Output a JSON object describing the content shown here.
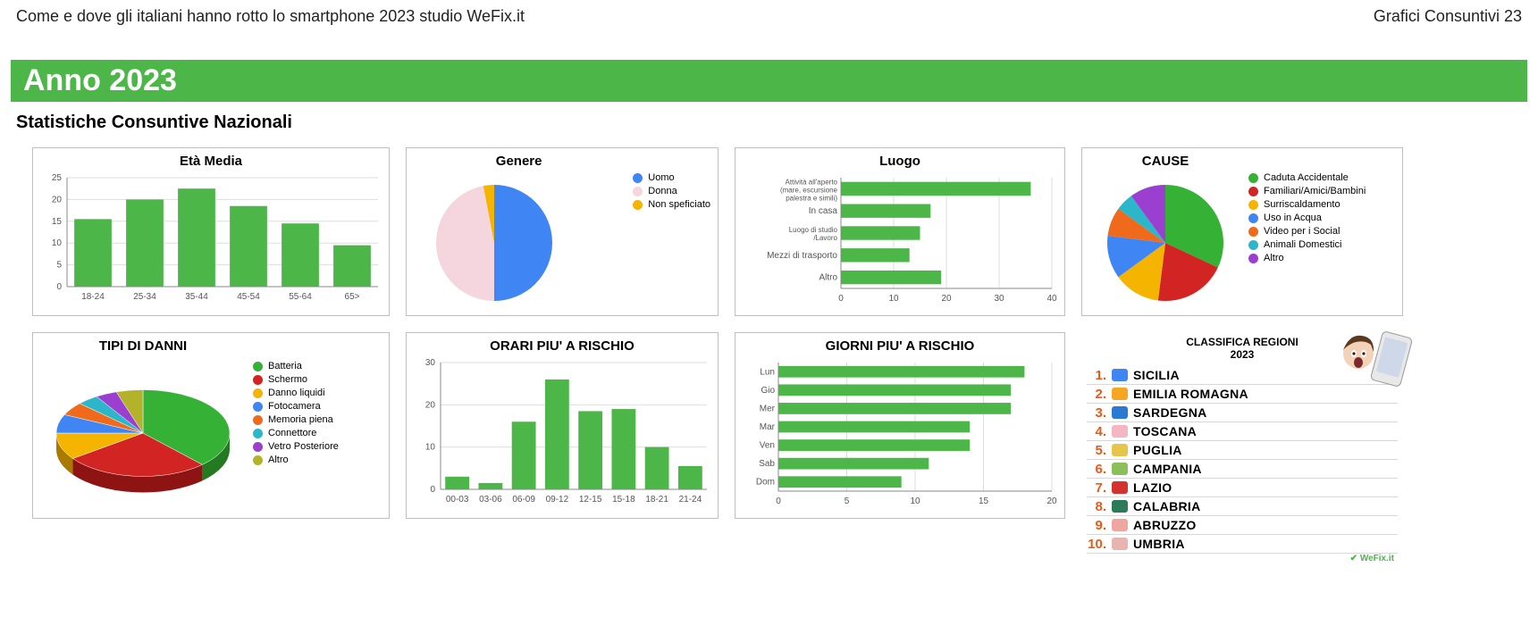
{
  "header": {
    "title_left": "Come e dove gli italiani hanno rotto lo smartphone 2023 studio WeFix.it",
    "title_right": "Grafici Consuntivi 23"
  },
  "banner": "Anno 2023",
  "subtitle": "Statistiche Consuntive Nazionali",
  "colors": {
    "brand_green": "#4cb648",
    "card_border": "#bfbfbf",
    "grid_line": "#dddddd",
    "axis": "#888888",
    "text": "#222222"
  },
  "eta": {
    "type": "bar",
    "title": "Età Media",
    "categories": [
      "18-24",
      "25-34",
      "35-44",
      "45-54",
      "55-64",
      "65>"
    ],
    "values": [
      15.5,
      20,
      22.5,
      18.5,
      14.5,
      9.5
    ],
    "bar_color": "#4cb648",
    "y_ticks": [
      0,
      5,
      10,
      15,
      20,
      25
    ],
    "ylim": [
      0,
      25
    ]
  },
  "genere": {
    "type": "pie",
    "title": "Genere",
    "slices": [
      {
        "label": "Uomo",
        "value": 50,
        "color": "#3f85f3"
      },
      {
        "label": "Donna",
        "value": 47,
        "color": "#f5d6df"
      },
      {
        "label": "Non speficiato",
        "value": 3,
        "color": "#f5b400"
      }
    ]
  },
  "luogo": {
    "type": "hbar",
    "title": "Luogo",
    "categories": [
      "Attività all'aperto (mare, escursione palestra e simili)",
      "In casa",
      "Luogo di studio /Lavoro",
      "Mezzi di trasporto",
      "Altro"
    ],
    "values": [
      36,
      17,
      15,
      13,
      19
    ],
    "bar_color": "#4cb648",
    "x_ticks": [
      0,
      10,
      20,
      30,
      40
    ],
    "xlim": [
      0,
      40
    ]
  },
  "cause": {
    "type": "pie",
    "title": "CAUSE",
    "slices": [
      {
        "label": "Caduta Accidentale",
        "value": 32,
        "color": "#35b236"
      },
      {
        "label": "Familiari/Amici/Bambini",
        "value": 20,
        "color": "#d32424"
      },
      {
        "label": "Surriscaldamento",
        "value": 13,
        "color": "#f5b400"
      },
      {
        "label": "Uso in Acqua",
        "value": 12,
        "color": "#3f85f3"
      },
      {
        "label": "Video per i Social",
        "value": 8,
        "color": "#f06a1b"
      },
      {
        "label": "Animali Domestici",
        "value": 5,
        "color": "#2bb6c9"
      },
      {
        "label": "Altro",
        "value": 10,
        "color": "#9b3fd1"
      }
    ]
  },
  "danni": {
    "type": "pie3d",
    "title": "TIPI DI DANNI",
    "slices": [
      {
        "label": "Batteria",
        "value": 38,
        "color": "#35b236",
        "side": "#237a21"
      },
      {
        "label": "Schermo",
        "value": 27,
        "color": "#d32424",
        "side": "#8e1414"
      },
      {
        "label": "Danno liquidi",
        "value": 10,
        "color": "#f5b400",
        "side": "#a87b00"
      },
      {
        "label": "Fotocamera",
        "value": 7,
        "color": "#3f85f3",
        "side": "#2a5bb0"
      },
      {
        "label": "Memoria piena",
        "value": 5,
        "color": "#f06a1b",
        "side": "#a84710"
      },
      {
        "label": "Connettore",
        "value": 4,
        "color": "#2bb6c9",
        "side": "#1c7c88"
      },
      {
        "label": "Vetro Posteriore",
        "value": 4,
        "color": "#9b3fd1",
        "side": "#6a2a90"
      },
      {
        "label": "Altro",
        "value": 5,
        "color": "#b3b22a",
        "side": "#7a791a"
      }
    ]
  },
  "orari": {
    "type": "bar",
    "title": "ORARI PIU' A RISCHIO",
    "categories": [
      "00-03",
      "03-06",
      "06-09",
      "09-12",
      "12-15",
      "15-18",
      "18-21",
      "21-24"
    ],
    "values": [
      3,
      1.5,
      16,
      26,
      18.5,
      19,
      10,
      5.5
    ],
    "bar_color": "#4cb648",
    "y_ticks": [
      0,
      10,
      20,
      30
    ],
    "ylim": [
      0,
      30
    ]
  },
  "giorni": {
    "type": "hbar",
    "title": "GIORNI PIU' A RISCHIO",
    "categories": [
      "Lun",
      "Gio",
      "Mer",
      "Mar",
      "Ven",
      "Sab",
      "Dom"
    ],
    "values": [
      18,
      17,
      17,
      14,
      14,
      11,
      9
    ],
    "bar_color": "#4cb648",
    "x_ticks": [
      0,
      5,
      10,
      15,
      20
    ],
    "xlim": [
      0,
      20
    ]
  },
  "regioni": {
    "title_line1": "CLASSIFICA REGIONI",
    "title_line2": "2023",
    "rows": [
      {
        "n": "1.",
        "name": "SICILIA",
        "num_color": "#e85a1a",
        "dot": "#3f85f3"
      },
      {
        "n": "2.",
        "name": "EMILIA ROMAGNA",
        "num_color": "#e85a1a",
        "dot": "#f5a623"
      },
      {
        "n": "3.",
        "name": "SARDEGNA",
        "num_color": "#e85a1a",
        "dot": "#2a7ad4"
      },
      {
        "n": "4.",
        "name": "TOSCANA",
        "num_color": "#e85a1a",
        "dot": "#f5b6c4"
      },
      {
        "n": "5.",
        "name": "PUGLIA",
        "num_color": "#e85a1a",
        "dot": "#e6c64a"
      },
      {
        "n": "6.",
        "name": "CAMPANIA",
        "num_color": "#e85a1a",
        "dot": "#8bbf5a"
      },
      {
        "n": "7.",
        "name": "LAZIO",
        "num_color": "#e85a1a",
        "dot": "#d4322c"
      },
      {
        "n": "8.",
        "name": "CALABRIA",
        "num_color": "#e85a1a",
        "dot": "#2b7a5a"
      },
      {
        "n": "9.",
        "name": "ABRUZZO",
        "num_color": "#e85a1a",
        "dot": "#f0a6a0"
      },
      {
        "n": "10.",
        "name": "UMBRIA",
        "num_color": "#e85a1a",
        "dot": "#e8b4b0"
      }
    ],
    "brand": "WeFix.it"
  }
}
